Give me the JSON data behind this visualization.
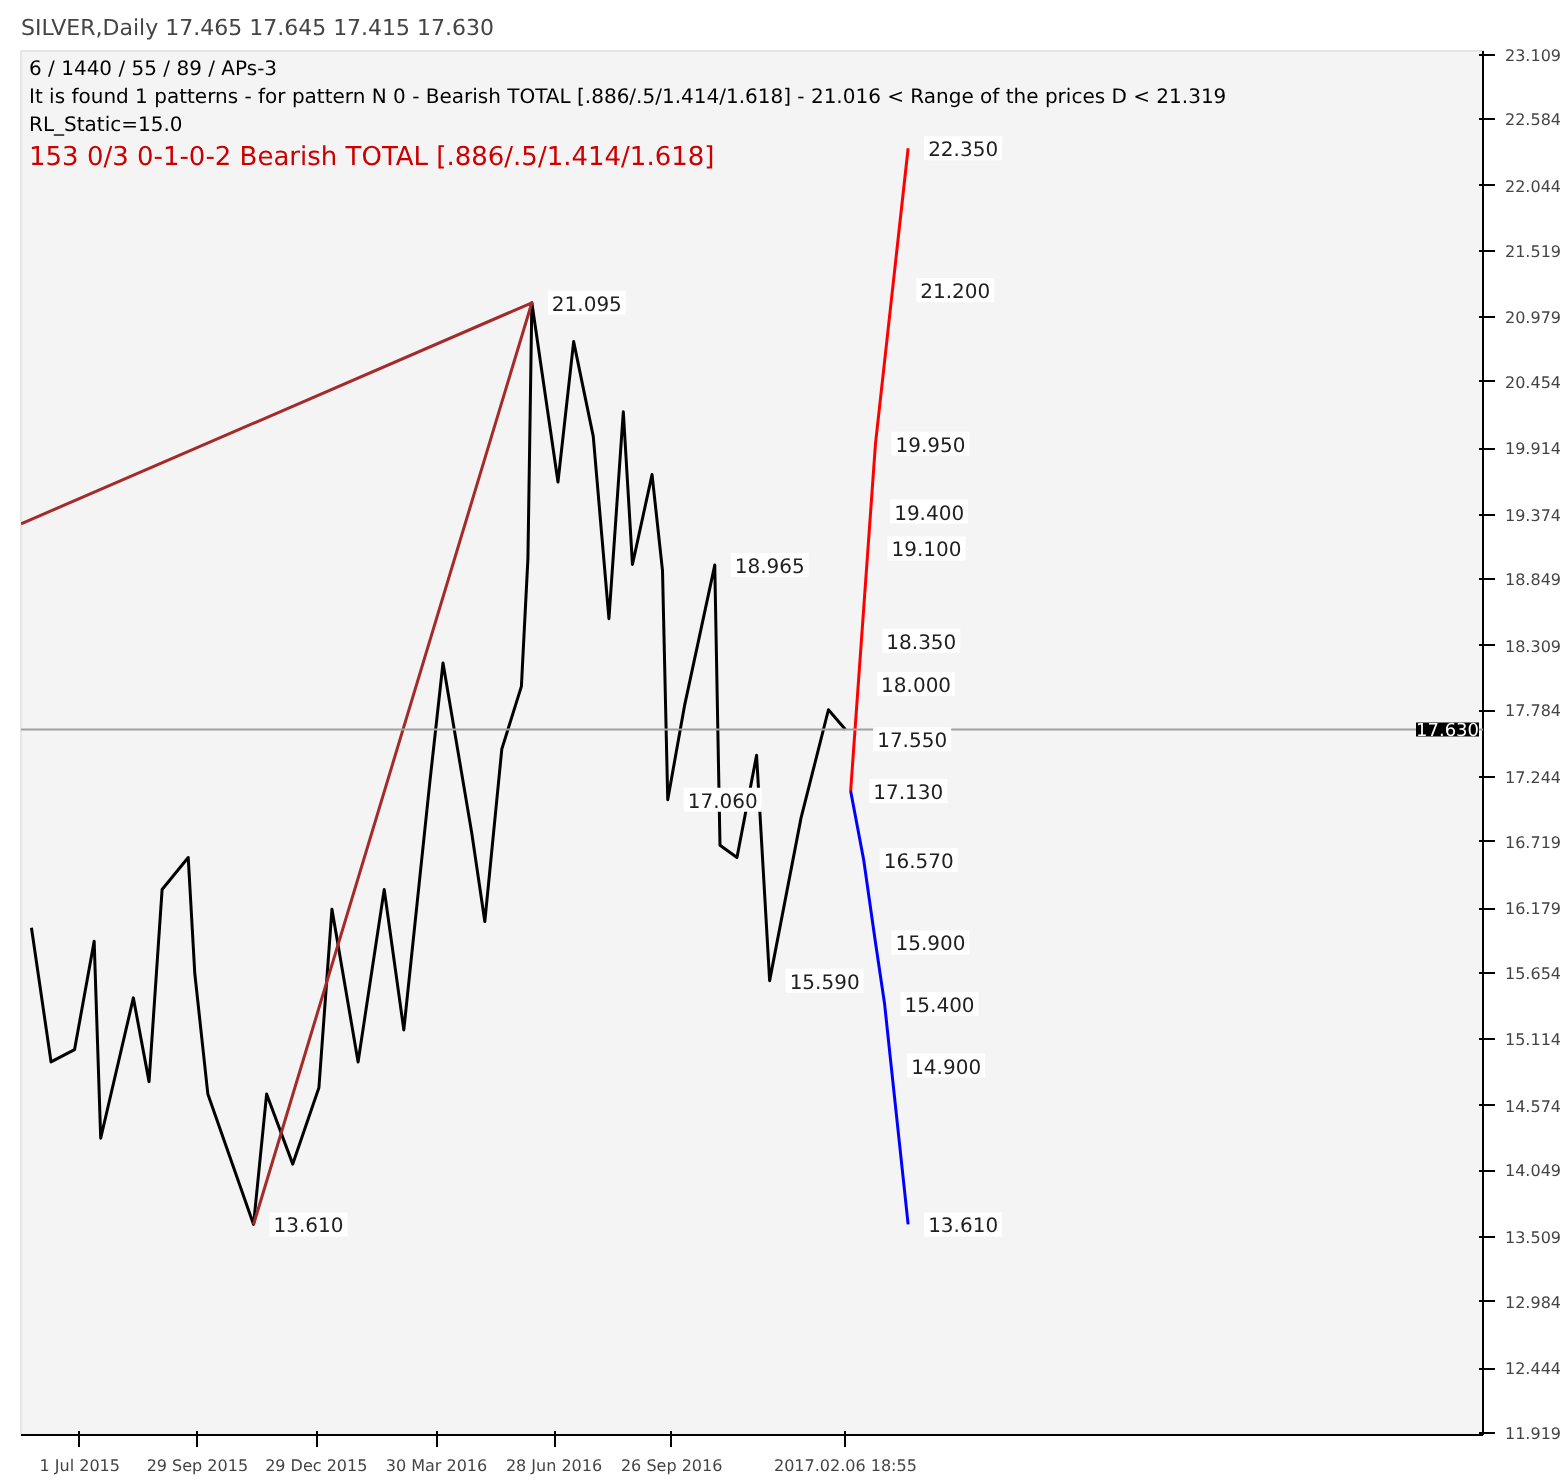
{
  "chart_data": {
    "type": "line",
    "title": "SILVER,Daily 17.465 17.645 17.415 17.630",
    "annotations": [
      "6 / 1440 / 55 / 89 / APs-3",
      "It is found 1 patterns  -  for pattern N 0 - Bearish TOTAL [.886/.5/1.414/1.618] - 21.016 < Range of the prices D < 21.319",
      "RL_Static=15.0",
      "153    0/3    0-1-0-2    Bearish TOTAL [.886/.5/1.414/1.618]",
      {
        "text": "21.095",
        "x": "2016-06-11",
        "y": 21.095
      },
      {
        "text": "18.965",
        "x": "2016-10-29",
        "y": 18.965
      },
      {
        "text": "17.060",
        "x": "2016-09-23",
        "y": 17.06
      },
      {
        "text": "15.590",
        "x": "2016-12-10",
        "y": 15.59
      },
      {
        "text": "13.610",
        "x": "2015-11-11",
        "y": 13.61
      },
      {
        "text": "22.350",
        "x": "2017-03-26",
        "y": 22.35
      },
      {
        "text": "21.200",
        "x": "2017-03-20",
        "y": 21.2
      },
      {
        "text": "19.950",
        "x": "2017-03-01",
        "y": 19.95
      },
      {
        "text": "19.400",
        "x": "2017-02-28",
        "y": 19.4
      },
      {
        "text": "19.100",
        "x": "2017-02-26",
        "y": 19.1
      },
      {
        "text": "18.350",
        "x": "2017-02-22",
        "y": 18.35
      },
      {
        "text": "18.000",
        "x": "2017-02-18",
        "y": 18.0
      },
      {
        "text": "17.550",
        "x": "2017-02-15",
        "y": 17.55
      },
      {
        "text": "17.130",
        "x": "2017-02-12",
        "y": 17.13
      },
      {
        "text": "16.570",
        "x": "2017-02-20",
        "y": 16.57
      },
      {
        "text": "15.900",
        "x": "2017-03-01",
        "y": 15.9
      },
      {
        "text": "15.400",
        "x": "2017-03-08",
        "y": 15.4
      },
      {
        "text": "14.900",
        "x": "2017-03-13",
        "y": 14.9
      },
      {
        "text": "13.610",
        "x": "2017-03-26",
        "y": 13.61
      }
    ],
    "series": [
      {
        "color": "#000000",
        "x": [
          "2015-05-25",
          "2015-06-09",
          "2015-06-27",
          "2015-07-12",
          "2015-07-17",
          "2015-08-11",
          "2015-08-23",
          "2015-09-02",
          "2015-09-22",
          "2015-09-27",
          "2015-10-07",
          "2015-11-11",
          "2015-11-21",
          "2015-12-11",
          "2015-12-31",
          "2016-01-10",
          "2016-01-30",
          "2016-02-19",
          "2016-03-05",
          "2016-03-25",
          "2016-04-04",
          "2016-04-26",
          "2016-05-06",
          "2016-05-19",
          "2016-06-03",
          "2016-06-08",
          "2016-06-11",
          "2016-07-01",
          "2016-07-13",
          "2016-07-28",
          "2016-08-09",
          "2016-08-20",
          "2016-08-27",
          "2016-09-11",
          "2016-09-19",
          "2016-09-23",
          "2016-10-06",
          "2016-10-29",
          "2016-11-02",
          "2016-11-15",
          "2016-11-30",
          "2016-12-10",
          "2017-01-03",
          "2017-01-24",
          "2017-02-06"
        ],
        "values": [
          16.02,
          14.93,
          15.03,
          15.91,
          14.31,
          15.45,
          14.77,
          16.33,
          16.59,
          15.65,
          14.67,
          13.61,
          14.67,
          14.1,
          14.72,
          16.17,
          14.93,
          16.33,
          15.19,
          17.21,
          18.17,
          16.79,
          16.07,
          17.47,
          17.98,
          19.02,
          21.095,
          19.64,
          20.78,
          20.01,
          18.53,
          20.21,
          18.97,
          19.7,
          18.92,
          17.06,
          17.83,
          18.965,
          16.69,
          16.59,
          17.42,
          15.59,
          16.91,
          17.79,
          17.63
        ]
      },
      {
        "color": "#a52a2a",
        "x": [
          "2015-05-17",
          "2016-06-11",
          "2015-11-11"
        ],
        "values": [
          19.3,
          21.095,
          13.61
        ]
      },
      {
        "color": "#ff0000",
        "x": [
          "2017-02-10",
          "2017-03-01",
          "2017-03-26"
        ],
        "values": [
          17.13,
          19.95,
          22.35
        ]
      },
      {
        "color": "#0000ff",
        "x": [
          "2017-02-10",
          "2017-02-20",
          "2017-03-01",
          "2017-03-08",
          "2017-03-13",
          "2017-03-26"
        ],
        "values": [
          17.13,
          16.57,
          15.9,
          15.4,
          14.9,
          13.61
        ]
      }
    ],
    "xlim": [
      "2015-05-17",
      "2018-06-09"
    ],
    "xticks": [
      {
        "value": "2015-07-01",
        "label": "1 Jul 2015"
      },
      {
        "value": "2015-09-29",
        "label": "29 Sep 2015"
      },
      {
        "value": "2015-12-29",
        "label": "29 Dec 2015"
      },
      {
        "value": "2016-03-30",
        "label": "30 Mar 2016"
      },
      {
        "value": "2016-06-28",
        "label": "28 Jun 2016"
      },
      {
        "value": "2016-09-26",
        "label": "26 Sep 2016"
      },
      {
        "value": "2017-02-06",
        "label": "2017.02.06 18:55"
      }
    ],
    "ylim": [
      11.9,
      23.14
    ],
    "yticks": [
      11.919,
      12.444,
      12.984,
      13.509,
      14.049,
      14.574,
      15.114,
      15.654,
      16.179,
      16.719,
      17.244,
      17.784,
      18.309,
      18.849,
      19.374,
      19.914,
      20.454,
      20.979,
      21.519,
      22.044,
      22.584,
      23.109
    ],
    "ref_lines": [
      {
        "axis": "y",
        "value": 17.63,
        "label": "17.630",
        "color": "#a0a0a0"
      }
    ],
    "grid": false
  }
}
